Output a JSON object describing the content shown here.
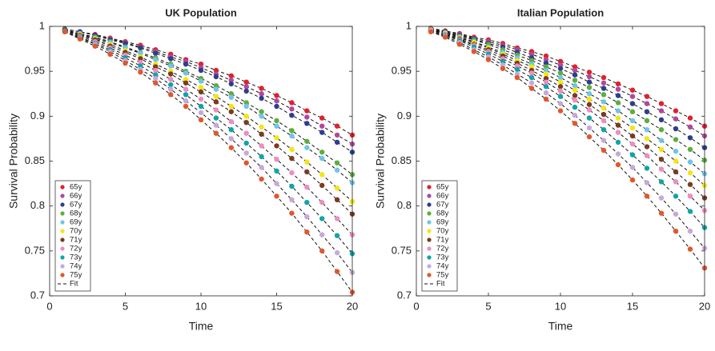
{
  "chart_data": [
    {
      "type": "scatter",
      "title": "UK Population",
      "x_label": "Time",
      "y_label": "Survival Probability",
      "x": [
        1,
        2,
        3,
        4,
        5,
        6,
        7,
        8,
        9,
        10,
        11,
        12,
        13,
        14,
        15,
        16,
        17,
        18,
        19,
        20
      ],
      "xlim": [
        0,
        20
      ],
      "xticks": [
        0,
        5,
        10,
        15,
        20
      ],
      "ylim": [
        0.7,
        1
      ],
      "yticks": [
        0.7,
        0.75,
        0.8,
        0.85,
        0.9,
        0.95,
        1
      ],
      "legend": "lower left",
      "fit_legend": "Fit",
      "series": [
        {
          "name": "65y",
          "color": "#e2202c",
          "values": [
            0.997,
            0.994,
            0.991,
            0.987,
            0.983,
            0.979,
            0.974,
            0.969,
            0.963,
            0.958,
            0.951,
            0.945,
            0.938,
            0.931,
            0.923,
            0.915,
            0.906,
            0.898,
            0.889,
            0.879
          ]
        },
        {
          "name": "66y",
          "color": "#b0499a",
          "values": [
            0.997,
            0.994,
            0.99,
            0.986,
            0.982,
            0.977,
            0.972,
            0.966,
            0.961,
            0.954,
            0.947,
            0.94,
            0.933,
            0.925,
            0.917,
            0.908,
            0.899,
            0.889,
            0.879,
            0.869
          ]
        },
        {
          "name": "67y",
          "color": "#2d3e8f",
          "values": [
            0.997,
            0.994,
            0.99,
            0.985,
            0.981,
            0.976,
            0.97,
            0.964,
            0.958,
            0.951,
            0.944,
            0.936,
            0.928,
            0.92,
            0.911,
            0.901,
            0.892,
            0.882,
            0.871,
            0.86
          ]
        },
        {
          "name": "68y",
          "color": "#5cae3d",
          "values": [
            0.996,
            0.992,
            0.988,
            0.983,
            0.977,
            0.971,
            0.965,
            0.958,
            0.95,
            0.942,
            0.934,
            0.925,
            0.915,
            0.905,
            0.895,
            0.884,
            0.872,
            0.86,
            0.848,
            0.835
          ]
        },
        {
          "name": "69y",
          "color": "#6fc5e8",
          "values": [
            0.996,
            0.992,
            0.987,
            0.982,
            0.976,
            0.97,
            0.963,
            0.956,
            0.948,
            0.939,
            0.93,
            0.921,
            0.911,
            0.9,
            0.889,
            0.878,
            0.865,
            0.853,
            0.84,
            0.826
          ]
        },
        {
          "name": "70y",
          "color": "#f6e50f",
          "values": [
            0.996,
            0.991,
            0.986,
            0.98,
            0.973,
            0.966,
            0.958,
            0.95,
            0.941,
            0.932,
            0.922,
            0.911,
            0.9,
            0.888,
            0.876,
            0.863,
            0.849,
            0.835,
            0.82,
            0.805
          ]
        },
        {
          "name": "71y",
          "color": "#7a3b1e",
          "values": [
            0.996,
            0.99,
            0.985,
            0.978,
            0.971,
            0.964,
            0.955,
            0.947,
            0.937,
            0.927,
            0.916,
            0.905,
            0.893,
            0.88,
            0.867,
            0.853,
            0.838,
            0.823,
            0.807,
            0.791
          ]
        },
        {
          "name": "72y",
          "color": "#f08cc0",
          "values": [
            0.995,
            0.989,
            0.983,
            0.976,
            0.968,
            0.96,
            0.951,
            0.941,
            0.93,
            0.919,
            0.907,
            0.894,
            0.881,
            0.867,
            0.852,
            0.837,
            0.821,
            0.804,
            0.786,
            0.768
          ]
        },
        {
          "name": "73y",
          "color": "#0fa5a8",
          "values": [
            0.995,
            0.988,
            0.981,
            0.974,
            0.965,
            0.956,
            0.946,
            0.935,
            0.924,
            0.911,
            0.898,
            0.885,
            0.87,
            0.855,
            0.839,
            0.822,
            0.804,
            0.786,
            0.767,
            0.747
          ]
        },
        {
          "name": "74y",
          "color": "#c8a8d8",
          "values": [
            0.994,
            0.987,
            0.98,
            0.972,
            0.962,
            0.952,
            0.942,
            0.93,
            0.917,
            0.904,
            0.89,
            0.875,
            0.859,
            0.843,
            0.825,
            0.807,
            0.788,
            0.768,
            0.748,
            0.726
          ]
        },
        {
          "name": "75y",
          "color": "#e0582a",
          "values": [
            0.994,
            0.986,
            0.978,
            0.969,
            0.959,
            0.949,
            0.937,
            0.924,
            0.911,
            0.896,
            0.881,
            0.865,
            0.848,
            0.83,
            0.811,
            0.792,
            0.771,
            0.75,
            0.727,
            0.704
          ]
        }
      ]
    },
    {
      "type": "scatter",
      "title": "Italian Population",
      "x_label": "Time",
      "y_label": "Survival Probability",
      "x": [
        1,
        2,
        3,
        4,
        5,
        6,
        7,
        8,
        9,
        10,
        11,
        12,
        13,
        14,
        15,
        16,
        17,
        18,
        19,
        20
      ],
      "xlim": [
        0,
        20
      ],
      "xticks": [
        0,
        5,
        10,
        15,
        20
      ],
      "ylim": [
        0.7,
        1
      ],
      "yticks": [
        0.7,
        0.75,
        0.8,
        0.85,
        0.9,
        0.95,
        1
      ],
      "legend": "lower left",
      "fit_legend": "Fit",
      "series": [
        {
          "name": "65y",
          "color": "#e2202c",
          "values": [
            0.998,
            0.995,
            0.992,
            0.988,
            0.985,
            0.981,
            0.976,
            0.972,
            0.967,
            0.961,
            0.955,
            0.949,
            0.943,
            0.936,
            0.929,
            0.922,
            0.914,
            0.906,
            0.898,
            0.889
          ]
        },
        {
          "name": "66y",
          "color": "#b0499a",
          "values": [
            0.997,
            0.994,
            0.991,
            0.987,
            0.983,
            0.979,
            0.974,
            0.969,
            0.963,
            0.957,
            0.951,
            0.944,
            0.937,
            0.93,
            0.922,
            0.914,
            0.906,
            0.897,
            0.888,
            0.878
          ]
        },
        {
          "name": "67y",
          "color": "#2d3e8f",
          "values": [
            0.997,
            0.994,
            0.99,
            0.986,
            0.981,
            0.977,
            0.971,
            0.965,
            0.959,
            0.953,
            0.946,
            0.938,
            0.931,
            0.923,
            0.914,
            0.905,
            0.896,
            0.886,
            0.876,
            0.865
          ]
        },
        {
          "name": "68y",
          "color": "#5cae3d",
          "values": [
            0.997,
            0.993,
            0.989,
            0.985,
            0.98,
            0.974,
            0.968,
            0.962,
            0.955,
            0.948,
            0.94,
            0.932,
            0.924,
            0.915,
            0.905,
            0.895,
            0.885,
            0.874,
            0.863,
            0.851
          ]
        },
        {
          "name": "69y",
          "color": "#6fc5e8",
          "values": [
            0.996,
            0.993,
            0.988,
            0.983,
            0.977,
            0.971,
            0.965,
            0.958,
            0.951,
            0.943,
            0.934,
            0.925,
            0.916,
            0.906,
            0.895,
            0.885,
            0.873,
            0.861,
            0.849,
            0.836
          ]
        },
        {
          "name": "70y",
          "color": "#f6e50f",
          "values": [
            0.996,
            0.992,
            0.987,
            0.982,
            0.976,
            0.969,
            0.962,
            0.955,
            0.947,
            0.938,
            0.929,
            0.919,
            0.909,
            0.898,
            0.887,
            0.875,
            0.863,
            0.85,
            0.837,
            0.823
          ]
        },
        {
          "name": "71y",
          "color": "#7a3b1e",
          "values": [
            0.996,
            0.991,
            0.986,
            0.98,
            0.974,
            0.967,
            0.959,
            0.951,
            0.942,
            0.933,
            0.923,
            0.913,
            0.902,
            0.89,
            0.878,
            0.866,
            0.852,
            0.838,
            0.824,
            0.809
          ]
        },
        {
          "name": "72y",
          "color": "#f08cc0",
          "values": [
            0.996,
            0.991,
            0.985,
            0.979,
            0.972,
            0.964,
            0.956,
            0.948,
            0.938,
            0.928,
            0.918,
            0.907,
            0.895,
            0.882,
            0.869,
            0.856,
            0.841,
            0.827,
            0.811,
            0.795
          ]
        },
        {
          "name": "73y",
          "color": "#0fa5a8",
          "values": [
            0.995,
            0.99,
            0.984,
            0.977,
            0.969,
            0.961,
            0.952,
            0.943,
            0.933,
            0.922,
            0.91,
            0.898,
            0.885,
            0.871,
            0.857,
            0.842,
            0.827,
            0.811,
            0.794,
            0.776
          ]
        },
        {
          "name": "74y",
          "color": "#c8a8d8",
          "values": [
            0.995,
            0.989,
            0.982,
            0.974,
            0.966,
            0.957,
            0.947,
            0.937,
            0.926,
            0.914,
            0.901,
            0.887,
            0.873,
            0.858,
            0.843,
            0.826,
            0.809,
            0.791,
            0.772,
            0.753
          ]
        },
        {
          "name": "75y",
          "color": "#e0582a",
          "values": [
            0.994,
            0.988,
            0.98,
            0.972,
            0.963,
            0.953,
            0.943,
            0.931,
            0.919,
            0.906,
            0.892,
            0.877,
            0.862,
            0.846,
            0.829,
            0.811,
            0.792,
            0.772,
            0.752,
            0.731
          ]
        }
      ]
    }
  ]
}
